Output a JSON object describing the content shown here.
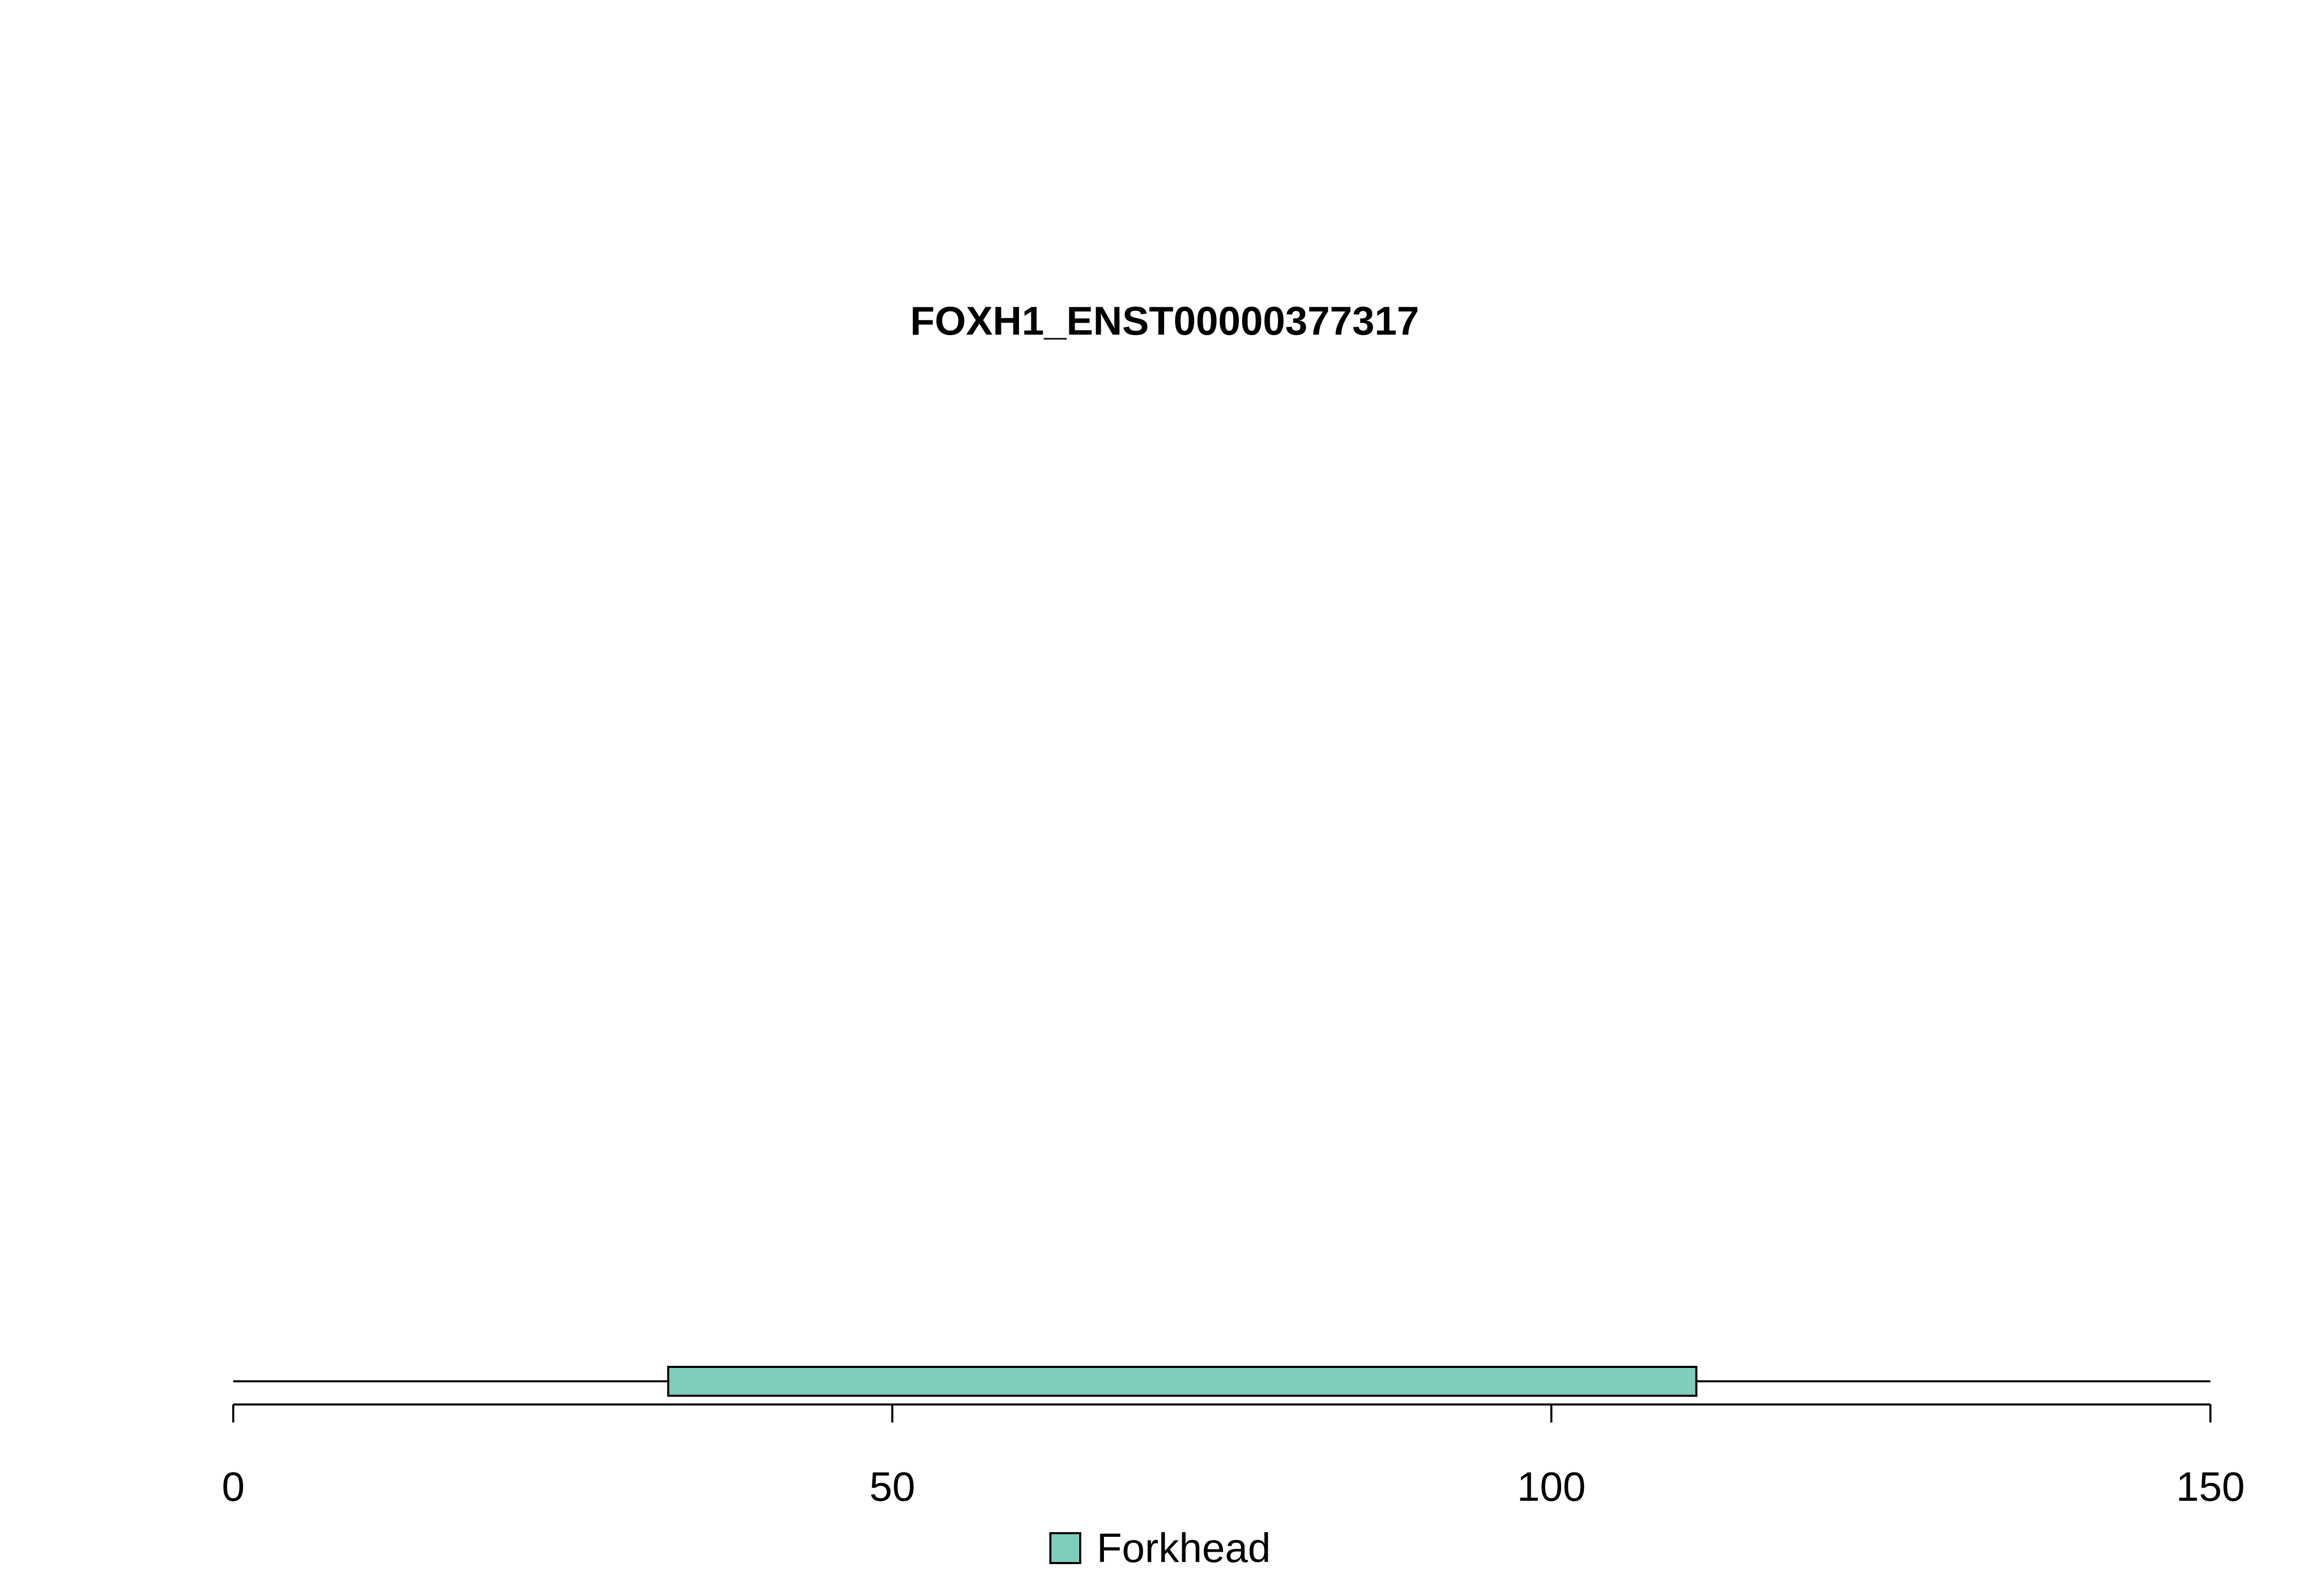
{
  "chart_data": {
    "type": "bar",
    "title": "FOXH1_ENST00000377317",
    "xlabel": "",
    "ylabel": "",
    "xlim": [
      0,
      150
    ],
    "x_ticks": [
      0,
      50,
      100,
      150
    ],
    "x_tick_labels": [
      "0",
      "50",
      "100",
      "150"
    ],
    "protein_length": 150,
    "domains": [
      {
        "name": "Forkhead",
        "start": 33,
        "end": 111,
        "color": "#7fcdbb"
      }
    ],
    "legend": [
      {
        "label": "Forkhead",
        "color": "#7fcdbb"
      }
    ],
    "legend_placement": "bottom-center",
    "grid": false
  }
}
